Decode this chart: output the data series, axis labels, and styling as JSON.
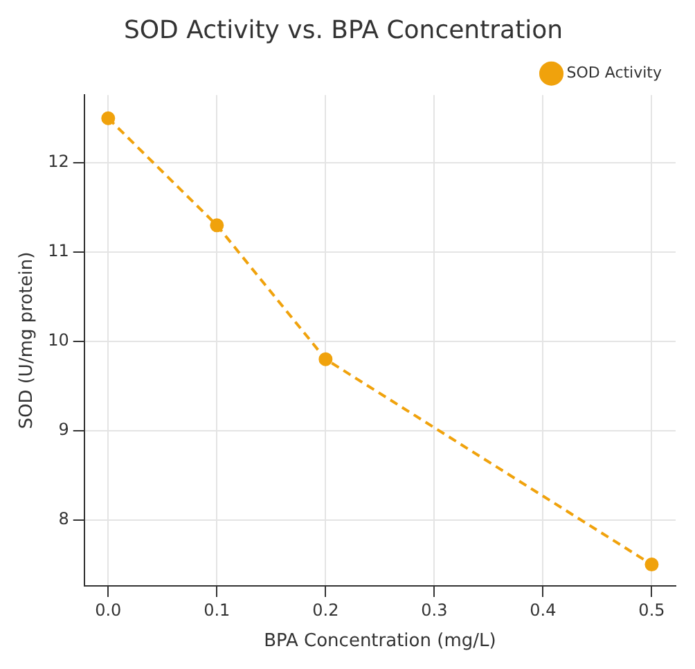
{
  "chart_data": {
    "type": "line",
    "title": "SOD Activity vs. BPA Concentration",
    "xlabel": "BPA Concentration (mg/L)",
    "ylabel": "SOD (U/mg protein)",
    "x": [
      0,
      0.1,
      0.2,
      0.5
    ],
    "series": [
      {
        "name": "SOD Activity",
        "color": "#f0a20c",
        "values": [
          12.5,
          11.3,
          9.8,
          7.5
        ]
      }
    ],
    "xlim": [
      -0.022,
      0.522
    ],
    "ylim": [
      7.26,
      12.76
    ],
    "xticks": [
      {
        "value": 0,
        "label": "0.0"
      },
      0.1,
      0.2,
      0.3,
      0.4,
      0.5
    ],
    "yticks": [
      8,
      9,
      10,
      11,
      12
    ],
    "grid": true,
    "legend": "top right",
    "marker": "circle",
    "line_style": "dashed"
  }
}
